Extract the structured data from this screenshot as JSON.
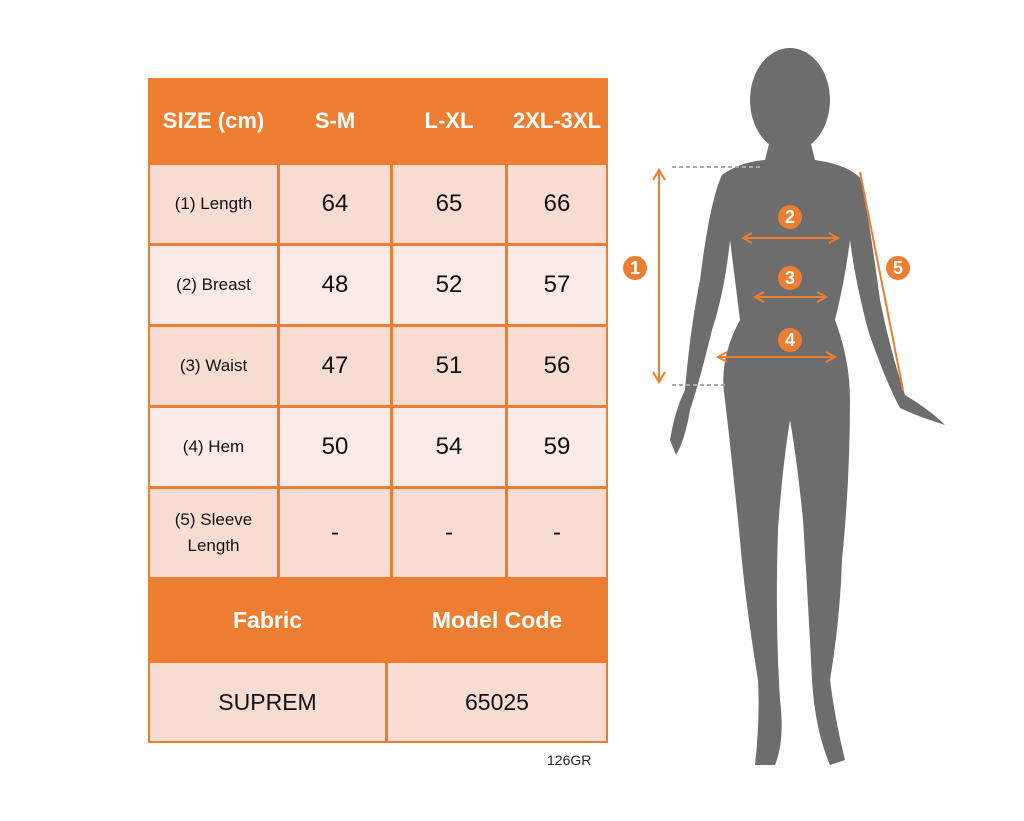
{
  "table": {
    "header": [
      "SIZE (cm)",
      "S-M",
      "L-XL",
      "2XL-3XL"
    ],
    "rows": [
      {
        "label": "(1) Length",
        "values": [
          "64",
          "65",
          "66"
        ]
      },
      {
        "label": "(2) Breast",
        "values": [
          "48",
          "52",
          "57"
        ]
      },
      {
        "label": "(3) Waist",
        "values": [
          "47",
          "51",
          "56"
        ]
      },
      {
        "label": "(4) Hem",
        "values": [
          "50",
          "54",
          "59"
        ]
      },
      {
        "label": "(5) Sleeve Length",
        "values": [
          "-",
          "-",
          "-"
        ]
      }
    ],
    "footer_headers": [
      "Fabric",
      "Model Code"
    ],
    "footer_values": [
      "SUPREM",
      "65025"
    ]
  },
  "product_code": "126GR",
  "figure": {
    "markers": [
      "1",
      "2",
      "3",
      "4",
      "5"
    ]
  },
  "colors": {
    "accent": "#ed7d31",
    "row_dark": "#f8dbd1",
    "row_light": "#fbebe6",
    "silhouette": "#6d6d6d"
  }
}
